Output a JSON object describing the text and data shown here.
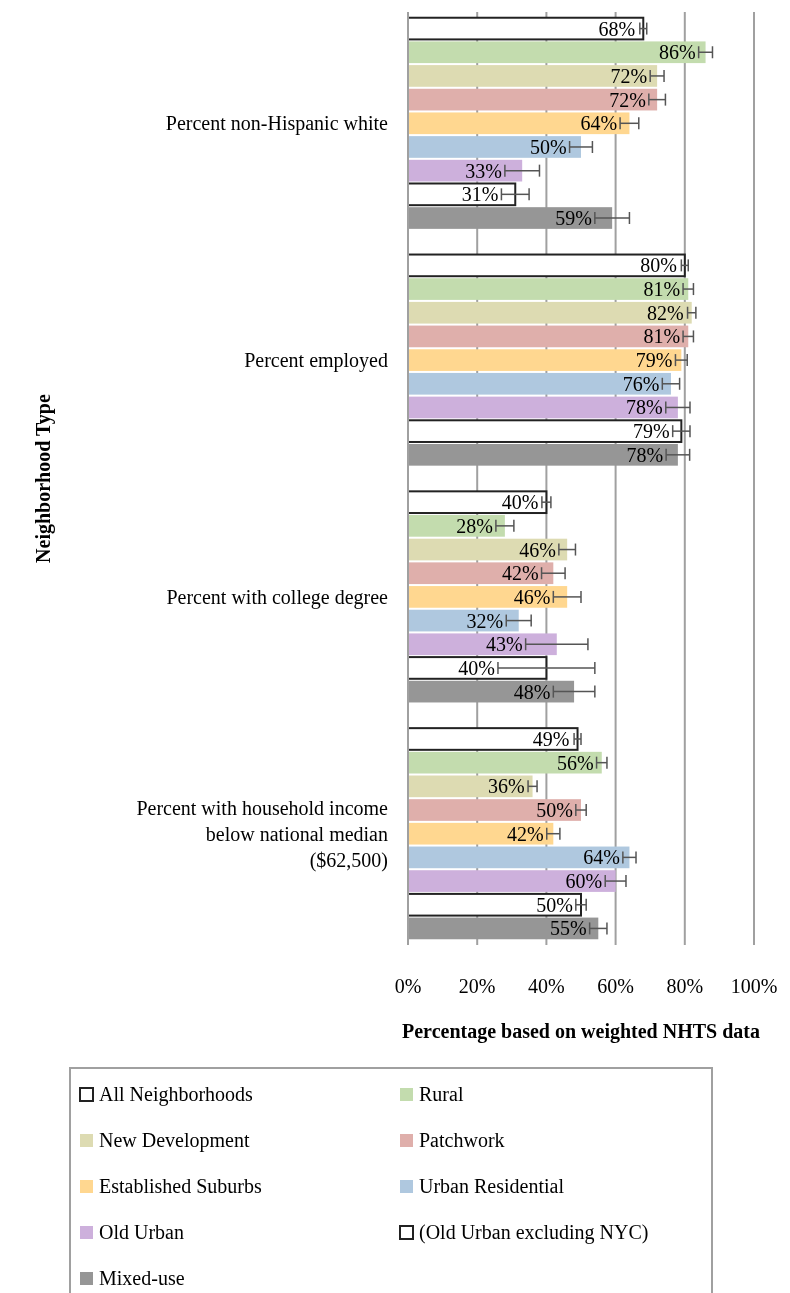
{
  "chart_data": {
    "type": "bar",
    "orientation": "horizontal",
    "xlabel": "Percentage based on weighted NHTS data",
    "ylabel": "Neighborhood Type",
    "categories": [
      "Percent non-Hispanic white",
      "Percent employed",
      "Percent with college degree",
      "Percent with household income below national median ($62,500)"
    ],
    "xlim": [
      0,
      100
    ],
    "xticks": [
      {
        "value": 0,
        "label": "0%"
      },
      {
        "value": 20,
        "label": "20%"
      },
      {
        "value": 40,
        "label": "40%"
      },
      {
        "value": 60,
        "label": "60%"
      },
      {
        "value": 80,
        "label": "80%"
      },
      {
        "value": 100,
        "label": "100%"
      }
    ],
    "grid": "x",
    "legend": "bottom",
    "series": [
      {
        "name": "All Neighborhoods",
        "color": "#ffffff",
        "values": [
          68,
          80,
          40,
          49
        ],
        "errors": [
          1,
          1,
          1.3,
          1
        ],
        "value_labels": [
          "68%",
          "80%",
          "40%",
          "49%"
        ]
      },
      {
        "name": "Rural",
        "color": "#c3dcae",
        "values": [
          86,
          81,
          28,
          56
        ],
        "errors": [
          2,
          1.5,
          2.6,
          1.5
        ],
        "value_labels": [
          "86%",
          "81%",
          "28%",
          "56%"
        ]
      },
      {
        "name": "New Development",
        "color": "#dddbb2",
        "values": [
          72,
          82,
          46,
          36
        ],
        "errors": [
          2,
          1.2,
          2.4,
          1.3
        ],
        "value_labels": [
          "72%",
          "82%",
          "46%",
          "36%"
        ]
      },
      {
        "name": "Patchwork",
        "color": "#dfafab",
        "values": [
          72,
          81,
          42,
          50
        ],
        "errors": [
          2.4,
          1.5,
          3.4,
          1.5
        ],
        "value_labels": [
          "72%",
          "81%",
          "42%",
          "50%"
        ]
      },
      {
        "name": "Established Suburbs",
        "color": "#ffd790",
        "values": [
          64,
          79,
          46,
          42
        ],
        "errors": [
          2.7,
          1.7,
          4,
          1.9
        ],
        "value_labels": [
          "64%",
          "79%",
          "46%",
          "42%"
        ]
      },
      {
        "name": "Urban Residential",
        "color": "#afc8df",
        "values": [
          50,
          76,
          32,
          64
        ],
        "errors": [
          3.3,
          2.5,
          3.6,
          1.9
        ],
        "value_labels": [
          "50%",
          "76%",
          "32%",
          "64%"
        ]
      },
      {
        "name": "Old Urban",
        "color": "#cdb0dc",
        "values": [
          33,
          78,
          43,
          60
        ],
        "errors": [
          5,
          3.5,
          9,
          3
        ],
        "value_labels": [
          "33%",
          "78%",
          "43%",
          "60%"
        ]
      },
      {
        "name": "(Old Urban excluding NYC)",
        "color": "#ffffff",
        "values": [
          31,
          79,
          40,
          50
        ],
        "errors": [
          4,
          2.5,
          14,
          1.5
        ],
        "value_labels": [
          "31%",
          "79%",
          "40%",
          "50%"
        ]
      },
      {
        "name": "Mixed-use",
        "color": "#969696",
        "values": [
          59,
          78,
          48,
          55
        ],
        "errors": [
          5,
          3.4,
          6,
          2.5
        ],
        "value_labels": [
          "59%",
          "78%",
          "48%",
          "55%"
        ]
      }
    ]
  }
}
